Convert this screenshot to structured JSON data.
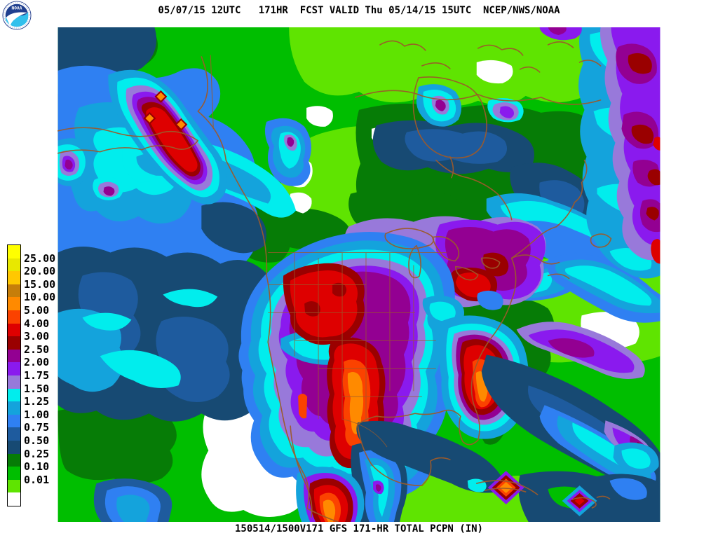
{
  "header": {
    "title": "05/07/15 12UTC   171HR  FCST VALID Thu 05/14/15 15UTC  NCEP/NWS/NOAA"
  },
  "footer": {
    "caption": "150514/1500V171 GFS 171-HR TOTAL PCPN (IN)"
  },
  "logo": {
    "text": "NOAA"
  },
  "palette": {
    "v25plus": "#FFFF00",
    "v20": "#E8E800",
    "v15": "#FFC801",
    "v10": "#C67E0A",
    "v5": "#FF8A00",
    "v4": "#FB4200",
    "v3": "#DE0000",
    "v2_50": "#9A0000",
    "v2_00": "#930092",
    "v1_75": "#8A1AEE",
    "v1_50": "#9879DA",
    "v1_25": "#01EDED",
    "v1_00": "#14A3DC",
    "v0_75": "#2F80F2",
    "v0_50": "#1E5B9E",
    "v0_25": "#174A73",
    "v0_10": "#067C06",
    "v0_01": "#00BE00",
    "trace": "#5FE401",
    "none": "#FFFFFF",
    "border": "#9C5A2B",
    "text": "#000000"
  },
  "legend": {
    "segments": [
      {
        "color": "v25plus",
        "label": "25.00"
      },
      {
        "color": "v20",
        "label": "20.00"
      },
      {
        "color": "v15",
        "label": "15.00"
      },
      {
        "color": "v10",
        "label": "10.00"
      },
      {
        "color": "v5",
        "label": "5.00"
      },
      {
        "color": "v4",
        "label": "4.00"
      },
      {
        "color": "v3",
        "label": "3.00"
      },
      {
        "color": "v2_50",
        "label": "2.50"
      },
      {
        "color": "v2_00",
        "label": "2.00"
      },
      {
        "color": "v1_75",
        "label": "1.75"
      },
      {
        "color": "v1_50",
        "label": "1.50"
      },
      {
        "color": "v1_25",
        "label": "1.25"
      },
      {
        "color": "v1_00",
        "label": "1.00"
      },
      {
        "color": "v0_75",
        "label": "0.75"
      },
      {
        "color": "v0_50",
        "label": "0.50"
      },
      {
        "color": "v0_25",
        "label": "0.25"
      },
      {
        "color": "v0_10",
        "label": "0.10"
      },
      {
        "color": "v0_01",
        "label": "0.01"
      },
      {
        "color": "trace",
        "label": ""
      },
      {
        "color": "none",
        "label": ""
      }
    ]
  }
}
